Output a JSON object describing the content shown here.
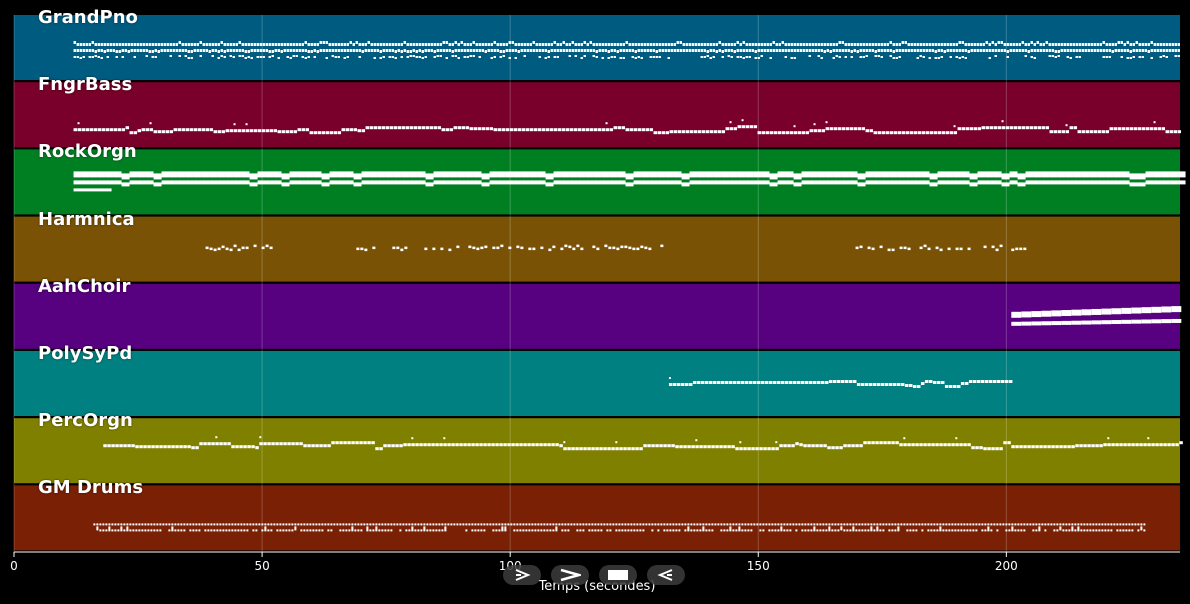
{
  "chart_data": {
    "type": "piano-roll",
    "xlabel": "Temps (secondes)",
    "xlim": [
      0,
      235
    ],
    "xticks": [
      "0",
      "50",
      "100",
      "150",
      "200"
    ],
    "tracks": [
      {
        "name": "GrandPno",
        "color": "#005b80",
        "start": 12,
        "end": 235,
        "pattern": "dense3"
      },
      {
        "name": "FngrBass",
        "color": "#78002a",
        "start": 12,
        "end": 235,
        "pattern": "line1"
      },
      {
        "name": "RockOrgn",
        "color": "#007f22",
        "start": 12,
        "end": 235,
        "pattern": "thick2"
      },
      {
        "name": "Harmnica",
        "color": "#7a5205",
        "segments": [
          [
            37,
            52
          ],
          [
            69,
            131
          ],
          [
            168,
            199
          ],
          [
            201,
            204
          ]
        ],
        "pattern": "sparse"
      },
      {
        "name": "AahChoir",
        "color": "#570080",
        "start": 201,
        "end": 235,
        "pattern": "choir"
      },
      {
        "name": "PolySyPd",
        "color": "#008080",
        "start": 132,
        "end": 201,
        "pattern": "line1"
      },
      {
        "name": "PercOrgn",
        "color": "#808000",
        "start": 18,
        "end": 235,
        "pattern": "line1"
      },
      {
        "name": "GM Drums",
        "color": "#7a2005",
        "start": 16,
        "end": 228,
        "pattern": "drums"
      }
    ]
  },
  "controls": {
    "play_icon": "play-icon",
    "forward_icon": "forward-icon",
    "stop_icon": "stop-icon",
    "back_icon": "back-icon"
  }
}
